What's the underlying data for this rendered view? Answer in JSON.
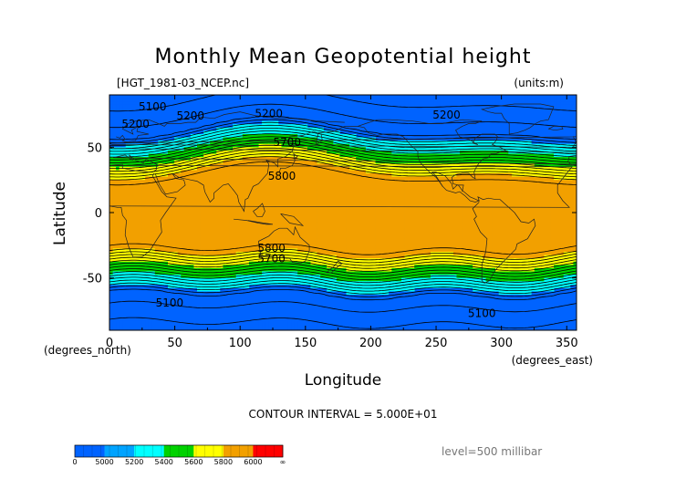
{
  "chart_data": {
    "type": "heatmap",
    "title": "Monthly Mean Geopotential height",
    "source_file": "[HGT_1981-03_NCEP.nc]",
    "units": "(units:m)",
    "xlabel": "Longitude",
    "ylabel": "Latitude",
    "x_unit": "(degrees_east)",
    "y_unit": "(degrees_north)",
    "xlim": [
      0,
      357.5
    ],
    "ylim": [
      -90,
      90
    ],
    "x_ticks": [
      0,
      50,
      100,
      150,
      200,
      250,
      300,
      350
    ],
    "y_ticks": [
      -50,
      0,
      50
    ],
    "contour_interval": "CONTOUR INTERVAL = 5.000E+01",
    "level": "level=500 millibar",
    "levels": [
      5000,
      5200,
      5400,
      5600,
      5800,
      6000
    ],
    "legend_labels": [
      "0",
      "5000",
      "5200",
      "5400",
      "5600",
      "5800",
      "6000",
      "∞"
    ],
    "band_colors": [
      "#0063ff",
      "#00a3ff",
      "#00ffff",
      "#00d200",
      "#ffff00",
      "#f2a000",
      "#ff0000"
    ],
    "contour_labels": [
      {
        "text": "5100",
        "lon": 33,
        "lat": 78
      },
      {
        "text": "5200",
        "lon": 20,
        "lat": 65
      },
      {
        "text": "5200",
        "lon": 62,
        "lat": 71
      },
      {
        "text": "5200",
        "lon": 122,
        "lat": 73
      },
      {
        "text": "5200",
        "lon": 258,
        "lat": 72
      },
      {
        "text": "5700",
        "lon": 136,
        "lat": 51
      },
      {
        "text": "5800",
        "lon": 132,
        "lat": 25
      },
      {
        "text": "5800",
        "lon": 124,
        "lat": -30
      },
      {
        "text": "5700",
        "lon": 124,
        "lat": -38
      },
      {
        "text": "5100",
        "lon": 46,
        "lat": -72
      },
      {
        "text": "5100",
        "lon": 285,
        "lat": -80
      }
    ]
  }
}
